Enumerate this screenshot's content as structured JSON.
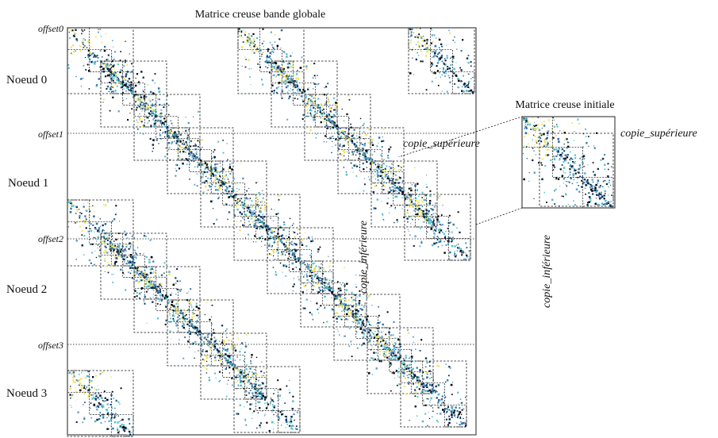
{
  "title": "Matrice creuse bande globale",
  "inset_title": "Matrice creuse initiale",
  "offsets": [
    "offset0",
    "offset1",
    "offset2",
    "offset3"
  ],
  "nodes": [
    "Noeud 0",
    "Noeud 1",
    "Noeud 2",
    "Noeud 3"
  ],
  "annotations": {
    "upper_copy_main": "copie_supérieure",
    "lower_copy_main": "copie_inférieure",
    "upper_copy_inset": "copie_supérieure",
    "lower_copy_inset": "copie_inférieure"
  },
  "colors": {
    "frame": "#222222",
    "dark_blue": "#0b2a55",
    "mid_blue": "#2f6fa3",
    "light_blue": "#5fa3cf",
    "cyan": "#4fc0c8",
    "yellow": "#f0e36a",
    "black": "#000000"
  }
}
